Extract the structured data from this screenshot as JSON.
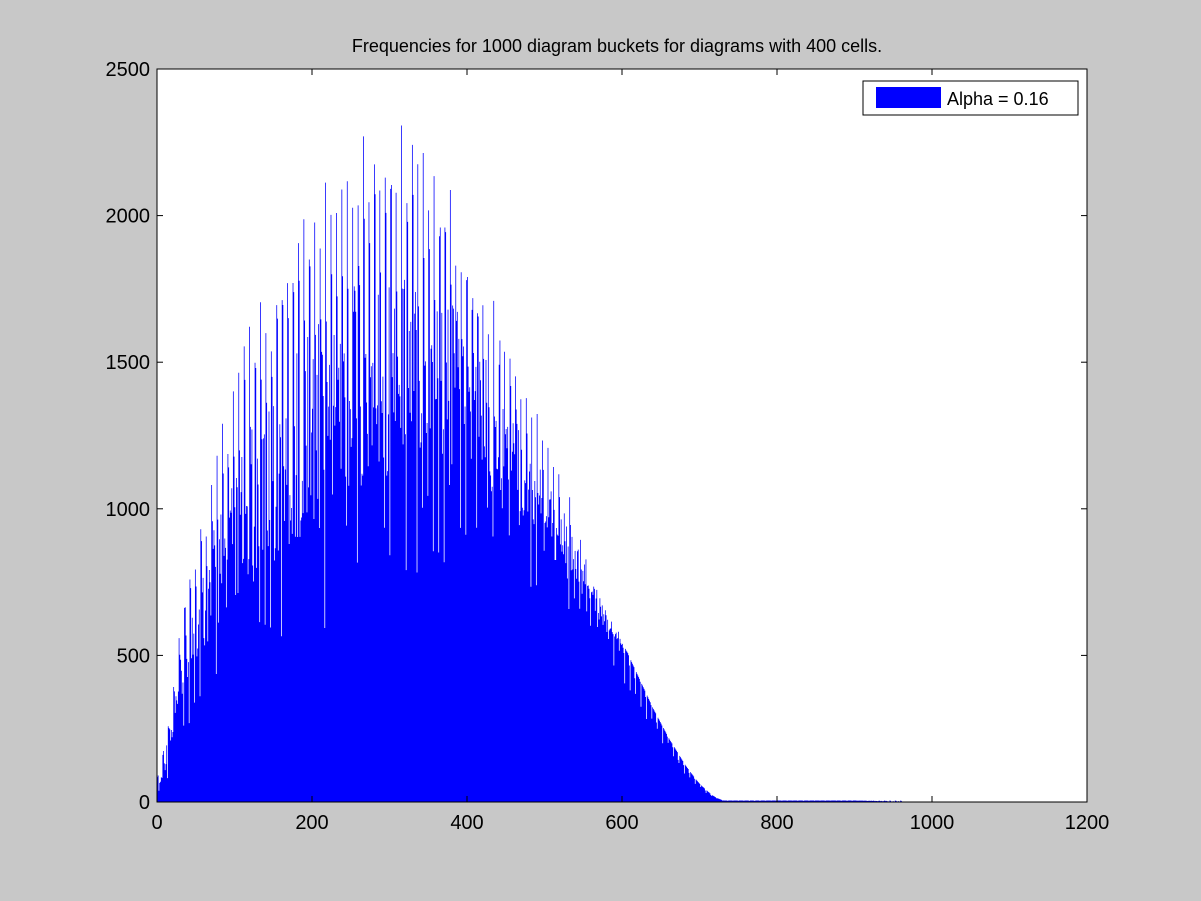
{
  "chart_data": {
    "type": "bar",
    "title": "Frequencies for 1000 diagram buckets for diagrams with 400 cells.",
    "xlabel": "",
    "ylabel": "",
    "xlim": [
      0,
      1200
    ],
    "ylim": [
      0,
      2500
    ],
    "x_ticks": [
      "0",
      "200",
      "400",
      "600",
      "800",
      "1000",
      "1200"
    ],
    "y_ticks": [
      "0",
      "500",
      "1000",
      "1500",
      "2000",
      "2500"
    ],
    "grid": false,
    "legend_position": "top-right",
    "series": [
      {
        "name": "Alpha = 0.16",
        "color": "#0000ff",
        "bucket_count": 1000,
        "envelope_peaks": [
          [
            3,
            100
          ],
          [
            10,
            230
          ],
          [
            17,
            330
          ],
          [
            24,
            470
          ],
          [
            31,
            630
          ],
          [
            38,
            750
          ],
          [
            45,
            850
          ],
          [
            52,
            950
          ],
          [
            59,
            1030
          ],
          [
            66,
            1080
          ],
          [
            73,
            1180
          ],
          [
            80,
            1270
          ],
          [
            87,
            1330
          ],
          [
            94,
            1380
          ],
          [
            101,
            1430
          ],
          [
            108,
            1520
          ],
          [
            115,
            1590
          ],
          [
            122,
            1640
          ],
          [
            129,
            1690
          ],
          [
            136,
            1720
          ],
          [
            143,
            1760
          ],
          [
            150,
            1800
          ],
          [
            157,
            1840
          ],
          [
            164,
            1880
          ],
          [
            171,
            1930
          ],
          [
            178,
            1970
          ],
          [
            185,
            2010
          ],
          [
            192,
            2040
          ],
          [
            199,
            2080
          ],
          [
            206,
            2100
          ],
          [
            213,
            2130
          ],
          [
            220,
            2160
          ],
          [
            227,
            2180
          ],
          [
            234,
            2200
          ],
          [
            241,
            2220
          ],
          [
            248,
            2240
          ],
          [
            255,
            2250
          ],
          [
            262,
            2270
          ],
          [
            269,
            2280
          ],
          [
            276,
            2300
          ],
          [
            283,
            2310
          ],
          [
            290,
            2320
          ],
          [
            297,
            2330
          ],
          [
            304,
            2340
          ],
          [
            311,
            2330
          ],
          [
            318,
            2320
          ],
          [
            325,
            2310
          ],
          [
            332,
            2300
          ],
          [
            339,
            2280
          ],
          [
            346,
            2260
          ],
          [
            353,
            2240
          ],
          [
            360,
            2210
          ],
          [
            367,
            2180
          ],
          [
            374,
            2150
          ],
          [
            381,
            2110
          ],
          [
            388,
            2070
          ],
          [
            395,
            2030
          ],
          [
            402,
            1990
          ],
          [
            409,
            1950
          ],
          [
            416,
            1900
          ],
          [
            423,
            1860
          ],
          [
            430,
            1810
          ],
          [
            437,
            1760
          ],
          [
            444,
            1710
          ],
          [
            451,
            1660
          ],
          [
            458,
            1610
          ],
          [
            465,
            1560
          ],
          [
            472,
            1510
          ],
          [
            479,
            1450
          ],
          [
            486,
            1400
          ],
          [
            493,
            1350
          ],
          [
            500,
            1300
          ],
          [
            507,
            1240
          ],
          [
            514,
            1190
          ],
          [
            521,
            1140
          ],
          [
            528,
            1080
          ],
          [
            535,
            1030
          ],
          [
            542,
            980
          ],
          [
            549,
            920
          ],
          [
            556,
            870
          ],
          [
            563,
            820
          ],
          [
            570,
            770
          ],
          [
            577,
            720
          ],
          [
            584,
            670
          ],
          [
            591,
            620
          ],
          [
            598,
            570
          ],
          [
            605,
            530
          ],
          [
            612,
            480
          ],
          [
            619,
            440
          ],
          [
            626,
            400
          ],
          [
            633,
            360
          ],
          [
            640,
            320
          ],
          [
            647,
            285
          ],
          [
            654,
            250
          ],
          [
            661,
            215
          ],
          [
            668,
            185
          ],
          [
            675,
            155
          ],
          [
            682,
            125
          ],
          [
            689,
            100
          ],
          [
            696,
            75
          ],
          [
            703,
            55
          ],
          [
            710,
            38
          ],
          [
            717,
            22
          ],
          [
            724,
            12
          ],
          [
            731,
            5
          ]
        ],
        "envelope_troughs": [
          [
            0,
            0
          ],
          [
            50,
            300
          ],
          [
            100,
            420
          ],
          [
            150,
            480
          ],
          [
            200,
            560
          ],
          [
            250,
            640
          ],
          [
            300,
            700
          ],
          [
            350,
            760
          ],
          [
            400,
            790
          ],
          [
            450,
            760
          ],
          [
            500,
            700
          ],
          [
            550,
            600
          ],
          [
            600,
            520
          ],
          [
            650,
            400
          ],
          [
            700,
            280
          ],
          [
            750,
            170
          ],
          [
            800,
            80
          ],
          [
            850,
            25
          ],
          [
            900,
            5
          ],
          [
            950,
            0
          ]
        ]
      }
    ]
  }
}
